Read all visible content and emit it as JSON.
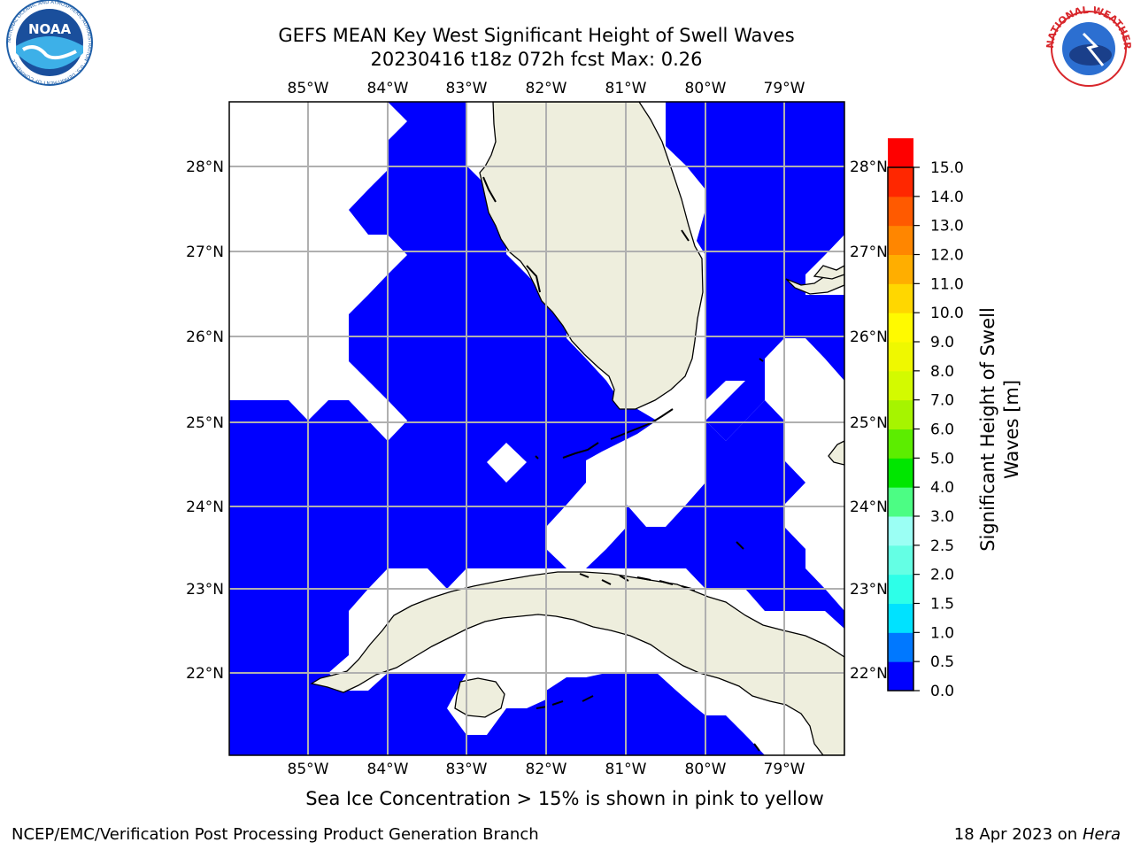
{
  "title_line1": "GEFS MEAN Key West Significant Height of Swell Waves",
  "title_line2": "20230416 t18z 072h fcst   Max: 0.26",
  "lon_labels": [
    "85°W",
    "84°W",
    "83°W",
    "82°W",
    "81°W",
    "80°W",
    "79°W"
  ],
  "lat_labels": [
    "22°N",
    "23°N",
    "24°N",
    "25°N",
    "26°N",
    "27°N",
    "28°N"
  ],
  "colorbar": {
    "label": "Significant Height of Swell Waves [m]",
    "label_line1": "Significant Height of Swell",
    "label_line2": "Waves [m]",
    "ticks": [
      "0.0",
      "0.5",
      "1.0",
      "1.5",
      "2.0",
      "2.5",
      "3.0",
      "4.0",
      "5.0",
      "6.0",
      "7.0",
      "8.0",
      "9.0",
      "10.0",
      "11.0",
      "12.0",
      "13.0",
      "14.0",
      "15.0"
    ],
    "colors": [
      "#0000fe",
      "#0078ff",
      "#00e2ff",
      "#2dffe8",
      "#64ffe4",
      "#9bfff4",
      "#4cfd84",
      "#00e600",
      "#5ced00",
      "#a6f400",
      "#d3fa00",
      "#eff800",
      "#fffa00",
      "#ffd700",
      "#ffae00",
      "#ff8600",
      "#ff5a00",
      "#ff2700",
      "#fe0000"
    ]
  },
  "colors": {
    "ocean": "#0000ff",
    "land": "#eeeedd",
    "grid": "#b0b0b0"
  },
  "logos": {
    "left_text": "NOAA",
    "left_ring_text": "NATIONAL OCEANIC AND ATMOSPHERIC ADMINISTRATION · U.S. DEPARTMENT OF COMMERCE",
    "right_text": "NATIONAL WEATHER SERVICE"
  },
  "footnote": "Sea Ice Concentration > 15% is shown in pink to yellow",
  "footer_left": "NCEP/EMC/Verification Post Processing Product Generation Branch",
  "footer_date": "18 Apr 2023 on ",
  "footer_host": "Hera"
}
